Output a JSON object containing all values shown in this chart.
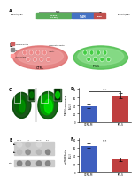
{
  "panel_A": {
    "left_label": "pcDNA3/FRT",
    "right_label": "pcDNA3/FRT",
    "middle_label": "NFS",
    "green_label": "CCPGCC\n(70 bp)",
    "green_color": "#5BAD5B",
    "blue_label": "TFAM",
    "blue_color": "#4472C4",
    "red_label": "Flag",
    "red_color": "#C0504D"
  },
  "panel_D": {
    "categories": [
      "CTRL-M",
      "iPS-S"
    ],
    "values": [
      38,
      65
    ],
    "errors": [
      4,
      7
    ],
    "colors": [
      "#3F5FBF",
      "#BF3F3F"
    ],
    "ylabel": "TFAM fluorescence\n(A.U.)",
    "sig_label": "***",
    "ylim": [
      0,
      85
    ],
    "yticks": [
      0,
      20,
      40,
      60,
      80
    ]
  },
  "panel_F": {
    "categories": [
      "CTRL-M",
      "iPS-S"
    ],
    "values": [
      65,
      32
    ],
    "errors": [
      5,
      4
    ],
    "colors": [
      "#3F5FBF",
      "#BF3F3F"
    ],
    "ylabel": "mtTFAM/Actin\n(A.U.)",
    "sig_label": "***",
    "ylim": [
      0,
      85
    ],
    "yticks": [
      0,
      20,
      40,
      60,
      80
    ]
  },
  "bg": "#ffffff"
}
